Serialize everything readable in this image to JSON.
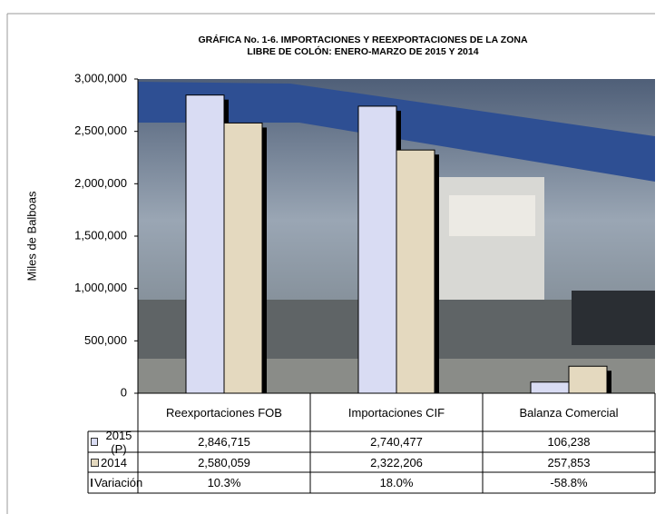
{
  "chart_data": {
    "type": "bar",
    "title": "GRÁFICA No. 1-6.  IMPORTACIONES Y REEXPORTACIONES DE LA ZONA",
    "subtitle": "LIBRE DE COLÓN: ENERO-MARZO DE 2015 Y 2014",
    "y_label": "Miles de Balboas",
    "categories": [
      "Reexportaciones FOB",
      "Importaciones CIF",
      "Balanza Comercial"
    ],
    "series": [
      {
        "name": "2015 (P)",
        "color": "#d9dcf3",
        "values": [
          2846715,
          2740477,
          106238
        ],
        "value_labels": [
          "2,846,715",
          "2,740,477",
          "106,238"
        ]
      },
      {
        "name": "2014",
        "color": "#e4d9bf",
        "values": [
          2580059,
          2322206,
          257853
        ],
        "value_labels": [
          "2,580,059",
          "2,322,206",
          "257,853"
        ]
      }
    ],
    "variation": {
      "name": "Variación",
      "color": "#fbf8e8",
      "values": [
        10.3,
        18.0,
        -58.8
      ],
      "value_labels": [
        "10.3%",
        "18.0%",
        "-58.8%"
      ]
    },
    "ylim": [
      0,
      3000000
    ],
    "yticks": [
      0,
      {
        "value": 500000,
        "label": "500,000"
      },
      {
        "value": 1000000,
        "label": "1,000,000"
      },
      {
        "value": 1500000,
        "label": "1,500,000"
      },
      {
        "value": 2000000,
        "label": "2,000,000"
      },
      {
        "value": 2500000,
        "label": "2,500,000"
      },
      {
        "value": 3000000,
        "label": "3,000,000"
      }
    ]
  }
}
